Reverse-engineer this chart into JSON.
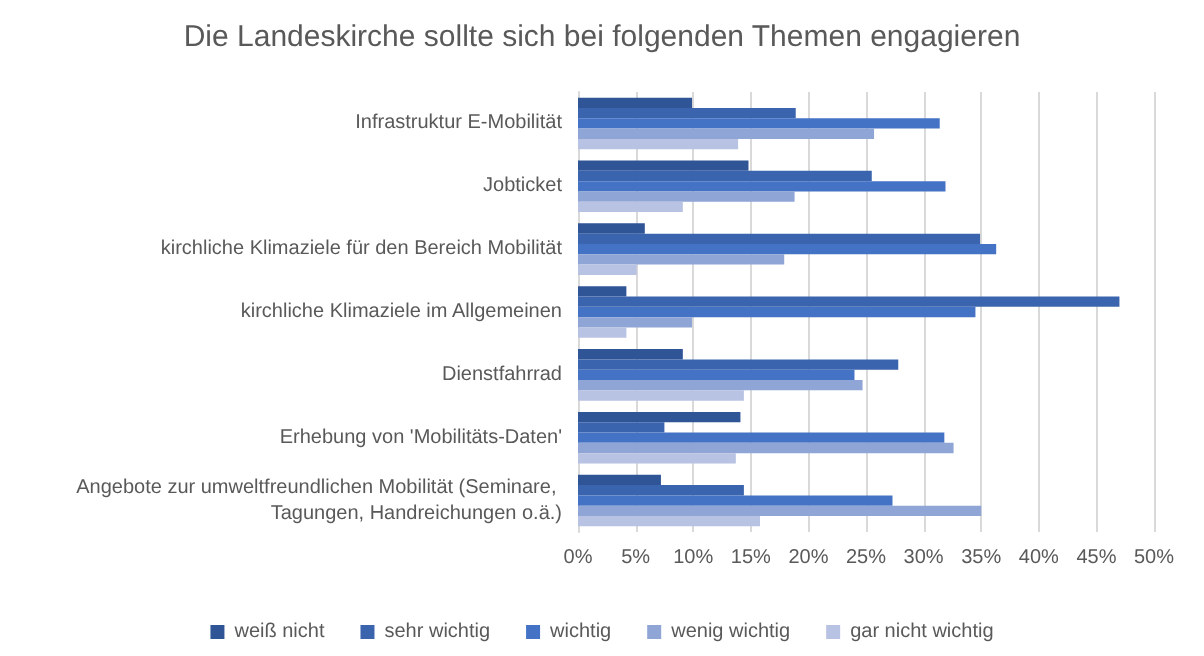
{
  "chart_data": {
    "type": "bar",
    "orientation": "horizontal",
    "title": "Die Landeskirche sollte sich bei folgenden Themen engagieren",
    "categories": [
      "Infrastruktur E-Mobilität",
      "Jobticket",
      "kirchliche Klimaziele für den Bereich Mobilität",
      "kirchliche Klimaziele im Allgemeinen",
      "Dienstfahrrad",
      "Erhebung von 'Mobilitäts-Daten'",
      "Angebote zur umweltfreundlichen Mobilität (Seminare, Tagungen, Handreichungen o.ä.)"
    ],
    "series": [
      {
        "name": "weiß nicht",
        "color": "#2f5597",
        "values": [
          9.9,
          14.8,
          5.8,
          4.2,
          9.1,
          14.1,
          7.2
        ]
      },
      {
        "name": "sehr wichtig",
        "color": "#3a64ad",
        "values": [
          18.9,
          25.5,
          34.9,
          47.0,
          27.8,
          7.5,
          14.4
        ]
      },
      {
        "name": "wichtig",
        "color": "#4472c4",
        "values": [
          31.4,
          31.9,
          36.3,
          34.5,
          24.0,
          31.8,
          27.3
        ]
      },
      {
        "name": "wenig wichtig",
        "color": "#8fa5d6",
        "values": [
          25.7,
          18.8,
          17.9,
          9.9,
          24.7,
          32.6,
          35.0
        ]
      },
      {
        "name": "gar nicht wichtig",
        "color": "#b8c2e2",
        "values": [
          13.9,
          9.1,
          5.1,
          4.2,
          14.4,
          13.7,
          15.8
        ]
      }
    ],
    "xlim": [
      0,
      50
    ],
    "xticks": [
      {
        "value": 0,
        "label": "0%"
      },
      {
        "value": 5,
        "label": "5%"
      },
      {
        "value": 10,
        "label": "10%"
      },
      {
        "value": 15,
        "label": "15%"
      },
      {
        "value": 20,
        "label": "20%"
      },
      {
        "value": 25,
        "label": "25%"
      },
      {
        "value": 30,
        "label": "30%"
      },
      {
        "value": 35,
        "label": "35%"
      },
      {
        "value": 40,
        "label": "40%"
      },
      {
        "value": 45,
        "label": "45%"
      },
      {
        "value": 50,
        "label": "50%"
      }
    ],
    "grid": "x",
    "legend": "bottom"
  }
}
